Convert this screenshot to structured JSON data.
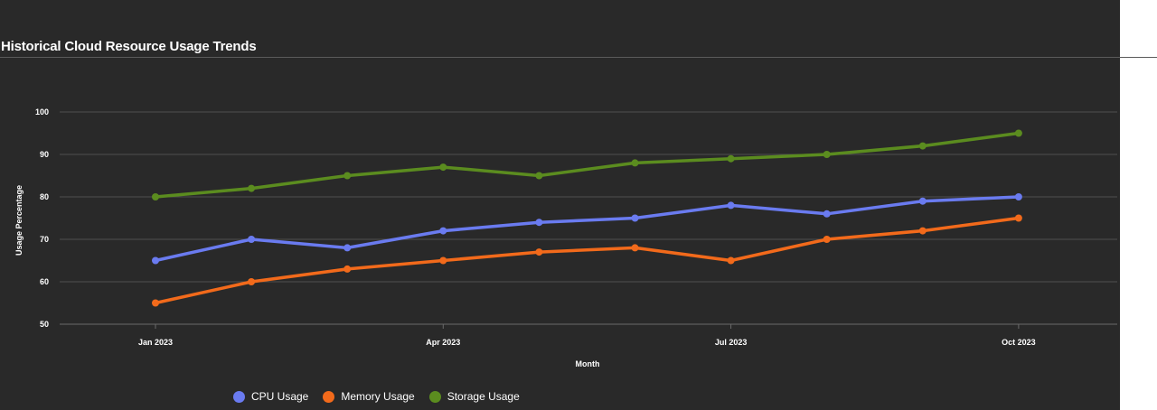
{
  "chart_data": {
    "type": "line",
    "title": "Historical Cloud Resource Usage Trends",
    "xlabel": "Month",
    "ylabel": "Usage Percentage",
    "x": [
      "Jan 2023",
      "Feb 2023",
      "Mar 2023",
      "Apr 2023",
      "May 2023",
      "Jun 2023",
      "Jul 2023",
      "Aug 2023",
      "Sep 2023",
      "Oct 2023"
    ],
    "x_ticks": [
      "Jan 2023",
      "Apr 2023",
      "Jul 2023",
      "Oct 2023"
    ],
    "y_ticks": [
      50,
      60,
      70,
      80,
      90,
      100
    ],
    "ylim": [
      50,
      100
    ],
    "grid": true,
    "legend_position": "bottom-left",
    "series": [
      {
        "name": "CPU Usage",
        "color": "#6a7bf0",
        "values": [
          65,
          70,
          68,
          72,
          74,
          75,
          78,
          76,
          79,
          80
        ]
      },
      {
        "name": "Memory Usage",
        "color": "#f26a1b",
        "values": [
          55,
          60,
          63,
          65,
          67,
          68,
          65,
          70,
          72,
          75
        ]
      },
      {
        "name": "Storage Usage",
        "color": "#5b8c1f",
        "values": [
          80,
          82,
          85,
          87,
          85,
          88,
          89,
          90,
          92,
          95
        ]
      }
    ]
  }
}
